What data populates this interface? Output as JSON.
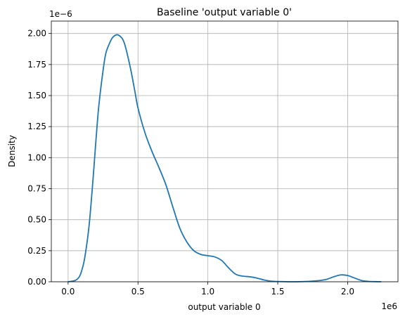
{
  "chart_data": {
    "type": "line",
    "title": "Baseline 'output variable 0'",
    "xlabel": "output variable 0",
    "ylabel": "Density",
    "x_offset_label": "1e6",
    "y_offset_label": "1e−6",
    "xlim": [
      -0.12,
      2.36
    ],
    "ylim": [
      0,
      2.1
    ],
    "x_ticks": [
      0.0,
      0.5,
      1.0,
      1.5,
      2.0
    ],
    "x_tick_labels": [
      "0.0",
      "0.5",
      "1.0",
      "1.5",
      "2.0"
    ],
    "y_ticks": [
      0.0,
      0.25,
      0.5,
      0.75,
      1.0,
      1.25,
      1.5,
      1.75,
      2.0
    ],
    "y_tick_labels": [
      "0.00",
      "0.25",
      "0.50",
      "0.75",
      "1.00",
      "1.25",
      "1.50",
      "1.75",
      "2.00"
    ],
    "grid": true,
    "line_color": "#1f77b4",
    "series": [
      {
        "x": [
          0.0,
          0.05,
          0.08,
          0.1,
          0.12,
          0.15,
          0.18,
          0.2,
          0.22,
          0.25,
          0.27,
          0.3,
          0.32,
          0.35,
          0.38,
          0.4,
          0.42,
          0.45,
          0.48,
          0.5,
          0.55,
          0.6,
          0.65,
          0.7,
          0.75,
          0.8,
          0.85,
          0.9,
          0.95,
          1.0,
          1.05,
          1.1,
          1.15,
          1.2,
          1.25,
          1.3,
          1.35,
          1.4,
          1.45,
          1.5,
          1.6,
          1.7,
          1.8,
          1.85,
          1.9,
          1.95,
          2.0,
          2.05,
          2.1,
          2.15,
          2.2,
          2.24
        ],
        "y": [
          0.0,
          0.01,
          0.04,
          0.1,
          0.2,
          0.45,
          0.85,
          1.15,
          1.42,
          1.7,
          1.84,
          1.93,
          1.97,
          1.99,
          1.97,
          1.93,
          1.85,
          1.7,
          1.52,
          1.4,
          1.2,
          1.05,
          0.92,
          0.78,
          0.6,
          0.43,
          0.32,
          0.25,
          0.22,
          0.21,
          0.2,
          0.17,
          0.11,
          0.06,
          0.045,
          0.04,
          0.03,
          0.015,
          0.005,
          0.002,
          0.0,
          0.002,
          0.01,
          0.02,
          0.04,
          0.055,
          0.05,
          0.03,
          0.01,
          0.003,
          0.001,
          0.0
        ]
      }
    ]
  }
}
